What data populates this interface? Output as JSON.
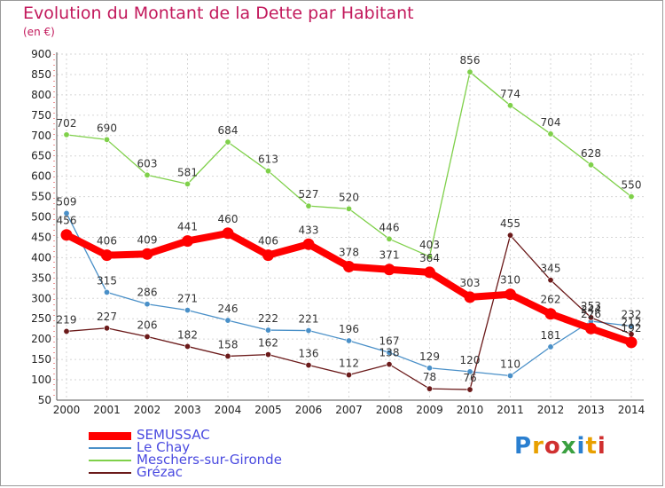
{
  "title": "Evolution du Montant de la Dette par Habitant",
  "subtitle": "(en €)",
  "logo": "Proxiti",
  "chart_data": {
    "type": "line",
    "title": "Evolution du Montant de la Dette par Habitant",
    "subtitle": "(en €)",
    "xlabel": "",
    "ylabel": "",
    "x": [
      "2000",
      "2001",
      "2002",
      "2003",
      "2004",
      "2005",
      "2006",
      "2007",
      "2008",
      "2009",
      "2010",
      "2011",
      "2012",
      "2013",
      "2014"
    ],
    "ylim": [
      50,
      900
    ],
    "yticks": [
      50,
      100,
      150,
      200,
      250,
      300,
      350,
      400,
      450,
      500,
      550,
      600,
      650,
      700,
      750,
      800,
      850,
      900
    ],
    "grid": true,
    "legend_position": "bottom-left",
    "series": [
      {
        "name": "SEMUSSAC",
        "color": "#ff0000",
        "emphasis": true,
        "values": [
          456,
          406,
          409,
          441,
          460,
          406,
          433,
          378,
          371,
          364,
          303,
          310,
          262,
          226,
          192
        ]
      },
      {
        "name": "Le Chay",
        "color": "#4a90c8",
        "values": [
          509,
          315,
          286,
          271,
          246,
          222,
          221,
          196,
          167,
          129,
          120,
          110,
          181,
          244,
          232
        ]
      },
      {
        "name": "Meschers-sur-Gironde",
        "color": "#7fd04a",
        "values": [
          702,
          690,
          603,
          581,
          684,
          613,
          527,
          520,
          446,
          403,
          856,
          774,
          704,
          628,
          550
        ]
      },
      {
        "name": "Grézac",
        "color": "#6b1a1a",
        "values": [
          219,
          227,
          206,
          182,
          158,
          162,
          136,
          112,
          138,
          78,
          76,
          455,
          345,
          253,
          212
        ]
      }
    ]
  }
}
